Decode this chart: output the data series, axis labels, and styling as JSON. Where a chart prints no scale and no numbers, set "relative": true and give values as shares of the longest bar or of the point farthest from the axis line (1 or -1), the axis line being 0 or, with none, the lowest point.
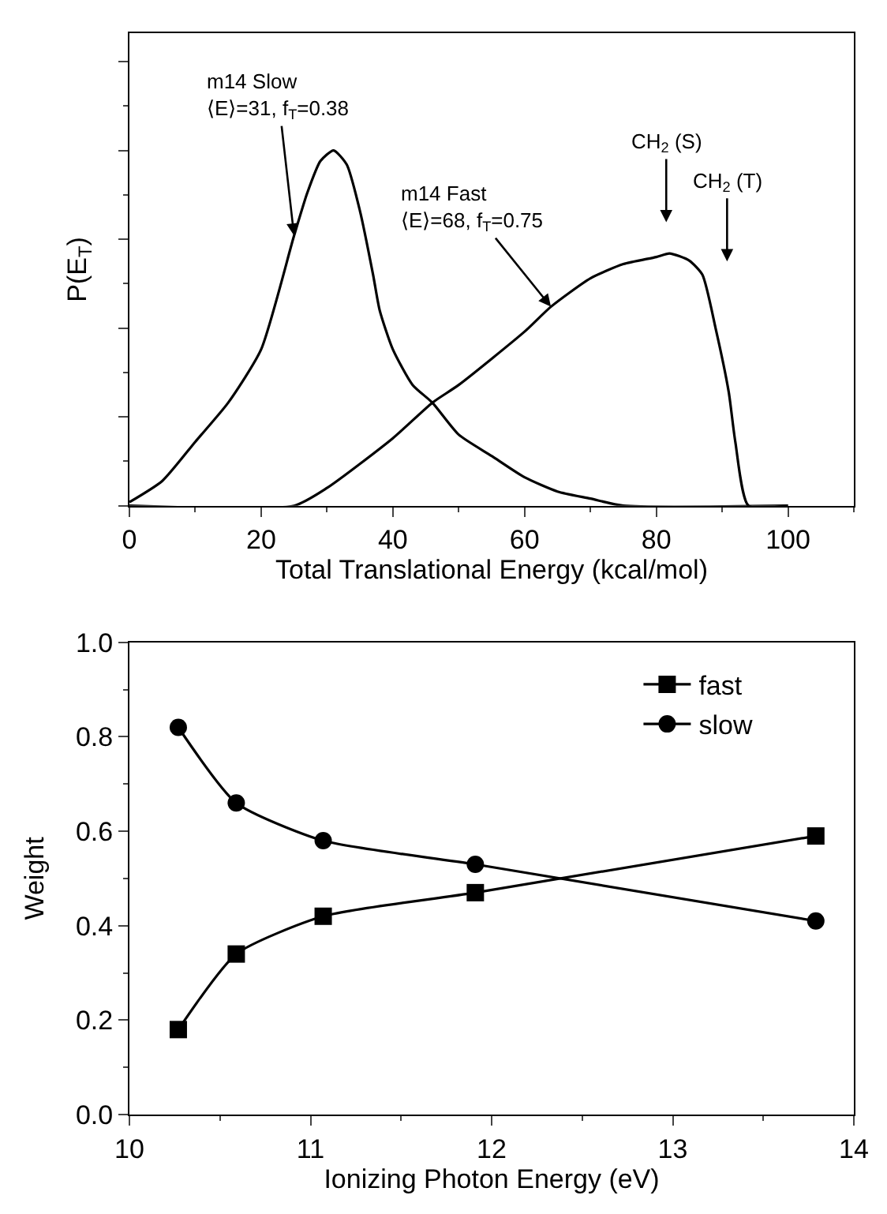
{
  "chart_data": [
    {
      "type": "line",
      "relative": true,
      "xlabel": "Total Translational Energy (kcal/mol)",
      "ylabel": "P(E$_{T}$)",
      "xlim": [
        0,
        110
      ],
      "xticks": [
        0,
        20,
        40,
        60,
        80,
        100
      ],
      "tick_labels": "x",
      "legend": false,
      "marker": "none",
      "line_style": "solid",
      "series": [
        {
          "color": "#000000",
          "x": [
            0,
            5,
            10,
            15,
            20,
            25,
            27,
            29,
            31,
            33,
            35,
            37,
            38,
            40,
            43,
            46,
            50,
            55,
            60,
            65,
            70,
            75,
            100
          ],
          "values": [
            0.01,
            0.07,
            0.18,
            0.29,
            0.44,
            0.76,
            0.88,
            0.97,
            1.0,
            0.96,
            0.83,
            0.65,
            0.55,
            0.44,
            0.34,
            0.29,
            0.2,
            0.14,
            0.08,
            0.04,
            0.02,
            0.0,
            0.0
          ]
        },
        {
          "color": "#000000",
          "x": [
            0,
            25,
            30,
            40,
            46,
            50,
            60,
            64,
            70,
            75,
            80,
            82,
            85,
            87,
            89,
            91,
            92,
            94,
            100
          ],
          "values": [
            0.0,
            0.0,
            0.05,
            0.19,
            0.29,
            0.34,
            0.49,
            0.56,
            0.64,
            0.68,
            0.7,
            0.71,
            0.69,
            0.65,
            0.5,
            0.32,
            0.18,
            0.0,
            0.0
          ]
        }
      ],
      "annotations": [
        {
          "text": "m14 Slow\n⟨E⟩=31, f$_{T}$=0.38",
          "x": 25,
          "y": 0.76
        },
        {
          "text": "m14 Fast\n⟨E⟩=68, f$_{T}$=0.75",
          "x": 64,
          "y": 0.56
        },
        "CH$_{2}$ (S)",
        "CH$_{2}$ (T)"
      ]
    },
    {
      "type": "line",
      "xlabel": "Ionizing Photon Energy (eV)",
      "ylabel": "Weight",
      "xlim": [
        10,
        14
      ],
      "xticks": [
        10,
        11,
        12,
        13,
        14
      ],
      "ylim": [
        0,
        1
      ],
      "yticks": [
        {
          "value": 0,
          "label": "0.0"
        },
        0.2,
        0.4,
        0.6,
        0.8,
        {
          "value": 1,
          "label": "1.0"
        }
      ],
      "legend": "top right",
      "line_style": "solid",
      "x": [
        10.27,
        10.59,
        11.07,
        11.91,
        13.79
      ],
      "series": [
        {
          "name": "fast",
          "color": "#000000",
          "marker": "square",
          "values": [
            0.18,
            0.34,
            0.42,
            0.47,
            0.59
          ]
        },
        {
          "name": "slow",
          "color": "#000000",
          "marker": "circle",
          "values": [
            0.82,
            0.66,
            0.58,
            0.53,
            0.41
          ]
        }
      ]
    }
  ]
}
